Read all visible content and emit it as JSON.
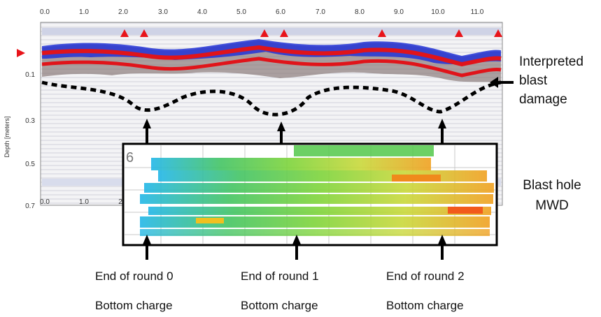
{
  "top_axis": {
    "ticks": [
      "0.0",
      "1.0",
      "2.0",
      "3.0",
      "4.0",
      "5.0",
      "6.0",
      "7.0",
      "8.0",
      "9.0",
      "10.0",
      "11.0"
    ]
  },
  "bottom_axis": {
    "ticks": [
      "0.0",
      "1.0",
      "2"
    ]
  },
  "depth_axis": {
    "label": "Depth [meters]",
    "ticks": [
      "0.1",
      "0.3",
      "0.5",
      "0.7"
    ]
  },
  "inset": {
    "corner_mark": "6"
  },
  "annotations": {
    "blast_damage": [
      "Interpreted",
      "blast",
      "damage"
    ],
    "mwd": [
      "Blast hole",
      "MWD"
    ]
  },
  "rounds": [
    {
      "title": "End of round 0",
      "subtitle": "Bottom charge"
    },
    {
      "title": "End of round 1",
      "subtitle": "Bottom charge"
    },
    {
      "title": "End of round 2",
      "subtitle": "Bottom charge"
    }
  ],
  "colors": {
    "radar_red": "#e0141a",
    "radar_blue": "#2233d6",
    "marker_red": "#e8141a",
    "damage_line": "#000000"
  }
}
